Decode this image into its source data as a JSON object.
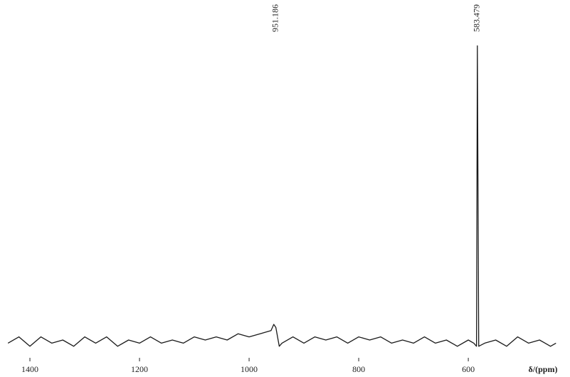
{
  "chart_data": {
    "type": "line",
    "x_label": "δ/(ppm)",
    "x": [
      1440,
      1420,
      1400,
      1380,
      1360,
      1340,
      1320,
      1300,
      1280,
      1260,
      1240,
      1220,
      1200,
      1180,
      1160,
      1140,
      1120,
      1100,
      1080,
      1060,
      1040,
      1020,
      1000,
      980,
      960,
      955,
      951.186,
      945,
      940,
      920,
      900,
      880,
      860,
      840,
      820,
      800,
      780,
      760,
      740,
      720,
      700,
      680,
      660,
      640,
      620,
      600,
      590,
      585,
      583.479,
      581,
      570,
      550,
      530,
      510,
      490,
      470,
      450,
      440
    ],
    "series": [
      {
        "color": "#1a1a1a",
        "values": [
          4,
          6,
          3,
          6,
          4,
          5,
          3,
          6,
          4,
          6,
          3,
          5,
          4,
          6,
          4,
          5,
          4,
          6,
          5,
          6,
          5,
          7,
          6,
          7,
          8,
          10,
          9,
          3,
          4,
          6,
          4,
          6,
          5,
          6,
          4,
          6,
          5,
          6,
          4,
          5,
          4,
          6,
          4,
          5,
          3,
          5,
          4,
          3,
          99,
          3,
          4,
          5,
          3,
          6,
          4,
          5,
          3,
          4
        ]
      }
    ],
    "peaks": [
      951.186,
      583.479
    ],
    "xlim": [
      1439,
      430
    ],
    "ylim": [
      0,
      100
    ],
    "xticks": [
      1400,
      1200,
      1000,
      800,
      600
    ]
  }
}
